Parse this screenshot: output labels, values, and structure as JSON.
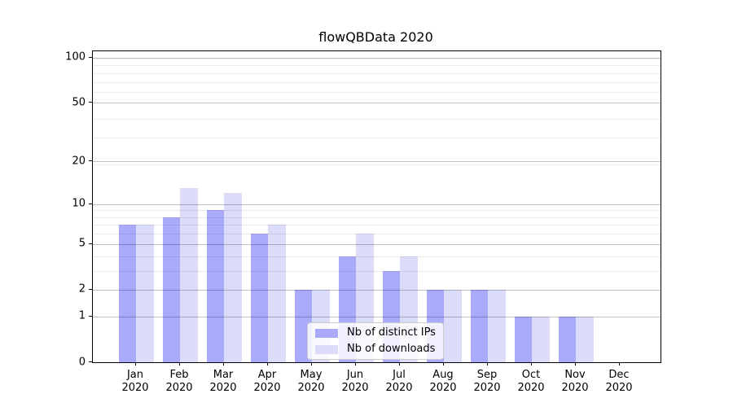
{
  "chart_data": {
    "type": "bar",
    "title": "flowQBData 2020",
    "categories": [
      "Jan",
      "Feb",
      "Mar",
      "Apr",
      "May",
      "Jun",
      "Jul",
      "Aug",
      "Sep",
      "Oct",
      "Nov",
      "Dec"
    ],
    "x_tick_second_line": "2020",
    "series": [
      {
        "name": "Nb of distinct IPs",
        "color": "#aaaafa",
        "values": [
          7,
          8,
          9,
          6,
          2,
          4,
          3,
          2,
          2,
          1,
          1,
          0
        ]
      },
      {
        "name": "Nb of downloads",
        "color": "#dbdbfa",
        "values": [
          7,
          13,
          12,
          7,
          2,
          6,
          4,
          2,
          2,
          1,
          1,
          0
        ]
      }
    ],
    "y_axis": {
      "scale": "log10(1+x)",
      "ticks": [
        0,
        1,
        2,
        5,
        10,
        20,
        50,
        100
      ],
      "minor_gridline_values": [
        3,
        4,
        6,
        7,
        8,
        9,
        19,
        29,
        39,
        59,
        69,
        79,
        89,
        99
      ],
      "max_value": 110
    },
    "legend": {
      "position": "lower center",
      "items": [
        "Nb of distinct IPs",
        "Nb of downloads"
      ]
    },
    "grid": true
  }
}
